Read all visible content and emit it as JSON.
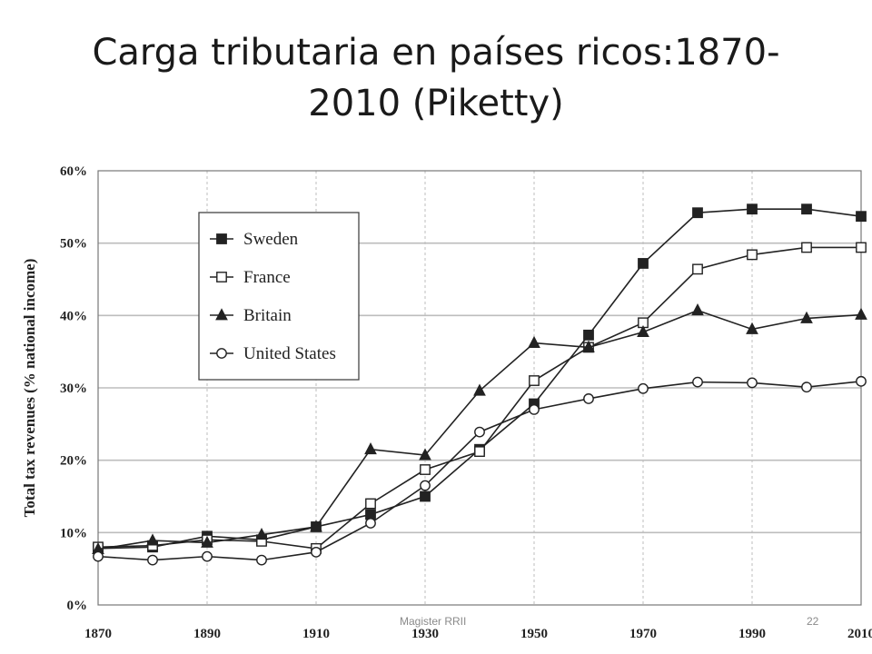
{
  "slide": {
    "title_line1": "Carga tributaria en países ricos:1870-",
    "title_line2": "2010 (Piketty)",
    "footer_left": "Magister RRII",
    "footer_right": "22"
  },
  "chart_data": {
    "type": "line",
    "ylabel": "Total tax revenues (% national income)",
    "xlabel": "",
    "x": [
      1870,
      1880,
      1890,
      1900,
      1910,
      1920,
      1930,
      1940,
      1950,
      1960,
      1970,
      1980,
      1990,
      2000,
      2010
    ],
    "xticks": [
      "1870",
      "1890",
      "1910",
      "1930",
      "1950",
      "1970",
      "1990",
      "2010"
    ],
    "yticks": [
      "0%",
      "10%",
      "20%",
      "30%",
      "40%",
      "50%",
      "60%"
    ],
    "ylim": [
      0,
      60
    ],
    "xlim": [
      1870,
      2010
    ],
    "grid": true,
    "legend_position": "top-left",
    "series": [
      {
        "name": "Sweden",
        "marker": "square-filled",
        "values": [
          7.8,
          8.0,
          9.5,
          9.0,
          10.8,
          12.5,
          15.0,
          21.5,
          27.8,
          37.3,
          47.2,
          54.2,
          54.7,
          54.7,
          53.7
        ]
      },
      {
        "name": "France",
        "marker": "square-open",
        "values": [
          8.0,
          8.2,
          9.0,
          8.8,
          7.8,
          14.0,
          18.7,
          21.2,
          31.0,
          35.6,
          39.0,
          46.4,
          48.4,
          49.4,
          49.4
        ]
      },
      {
        "name": "Britain",
        "marker": "triangle-filled",
        "values": [
          7.7,
          8.9,
          8.6,
          9.7,
          10.8,
          21.5,
          20.7,
          29.6,
          36.2,
          35.6,
          37.7,
          40.7,
          38.1,
          39.6,
          40.1
        ]
      },
      {
        "name": "United States",
        "marker": "circle-open",
        "values": [
          6.7,
          6.2,
          6.7,
          6.2,
          7.3,
          11.3,
          16.5,
          23.9,
          27.0,
          28.5,
          29.9,
          30.8,
          30.7,
          30.1,
          30.9
        ]
      }
    ],
    "colors": {
      "line": "#222222",
      "grid": "#bdbdbd",
      "frame": "#777777",
      "marker_fill": "#ffffff",
      "marker_stroke": "#222222"
    }
  }
}
